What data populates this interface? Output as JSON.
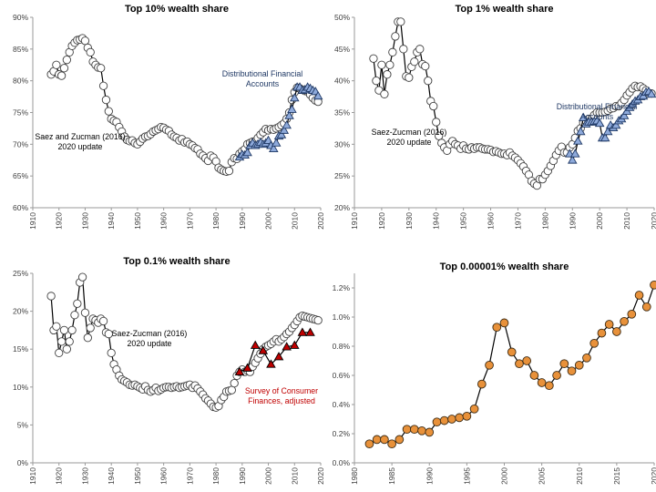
{
  "chart_data": [
    {
      "type": "line",
      "title": "Top 10% wealth share",
      "xlabel": "",
      "ylabel": "",
      "xlim": [
        1910,
        2020
      ],
      "ylim": [
        60,
        90
      ],
      "x_ticks": [
        1910,
        1920,
        1930,
        1940,
        1950,
        1960,
        1970,
        1980,
        1990,
        2000,
        2010,
        2020
      ],
      "y_ticks": [
        60,
        65,
        70,
        75,
        80,
        85,
        90
      ],
      "y_tick_labels": [
        "60%",
        "65%",
        "70%",
        "75%",
        "80%",
        "85%",
        "90%"
      ],
      "grid": false,
      "annotations": [
        {
          "text": "Saez and Zucman (2016)\n2020 update",
          "color": "#000000"
        },
        {
          "text": "Distributional Financial\nAccounts",
          "color": "#1f3864"
        }
      ],
      "series": [
        {
          "name": "Saez and Zucman (2016)\n2020 update",
          "marker": "circle",
          "color": "#000000",
          "x": [
            1917,
            1918,
            1919,
            1920,
            1921,
            1922,
            1923,
            1924,
            1925,
            1926,
            1927,
            1928,
            1929,
            1930,
            1931,
            1932,
            1933,
            1934,
            1935,
            1936,
            1937,
            1938,
            1939,
            1940,
            1941,
            1942,
            1943,
            1944,
            1945,
            1946,
            1947,
            1948,
            1949,
            1950,
            1951,
            1952,
            1953,
            1954,
            1955,
            1956,
            1957,
            1958,
            1959,
            1960,
            1961,
            1962,
            1963,
            1964,
            1965,
            1966,
            1967,
            1968,
            1969,
            1970,
            1971,
            1972,
            1973,
            1974,
            1975,
            1976,
            1977,
            1978,
            1979,
            1980,
            1981,
            1982,
            1983,
            1984,
            1985,
            1986,
            1987,
            1988,
            1989,
            1990,
            1991,
            1992,
            1993,
            1994,
            1995,
            1996,
            1997,
            1998,
            1999,
            2000,
            2001,
            2002,
            2003,
            2004,
            2005,
            2006,
            2007,
            2008,
            2009,
            2010,
            2011,
            2012,
            2013,
            2014,
            2015,
            2016,
            2017,
            2018,
            2019
          ],
          "y": [
            81,
            81.5,
            82.5,
            81,
            80.8,
            82,
            83.3,
            84.5,
            85.5,
            86,
            86.4,
            86.5,
            86.7,
            86.3,
            85.2,
            84.5,
            83,
            82.5,
            82.1,
            82,
            79.2,
            77,
            75.2,
            74,
            73.7,
            73.5,
            72.7,
            72,
            71.2,
            70.7,
            70.5,
            70.6,
            70.2,
            70,
            70.4,
            70.9,
            71.2,
            71.3,
            71.6,
            72,
            72.2,
            72.4,
            72.7,
            72.6,
            72.3,
            72.1,
            71.5,
            71.2,
            71,
            70.6,
            70.8,
            70.3,
            70.4,
            70,
            69.8,
            69.4,
            69.2,
            68.5,
            68.2,
            67.8,
            67.4,
            68.2,
            67.9,
            67.3,
            66.3,
            66,
            65.8,
            65.7,
            65.8,
            67.2,
            67.8,
            67.7,
            68.5,
            68.9,
            69.2,
            70,
            70.2,
            70.4,
            70.5,
            71,
            71.5,
            71.9,
            72.4,
            72.2,
            72.4,
            72.3,
            72.5,
            72.7,
            73,
            73.3,
            74,
            75,
            77,
            78.2,
            78.9,
            78.8,
            78.6,
            78.4,
            78.3,
            77.8,
            77.3,
            76.9,
            76.7
          ]
        },
        {
          "name": "Distributional Financial\nAccounts",
          "marker": "triangle",
          "color": "#1f3864",
          "x": [
            1989,
            1990,
            1991,
            1992,
            1993,
            1994,
            1995,
            1996,
            1997,
            1998,
            1999,
            2000,
            2001,
            2002,
            2003,
            2004,
            2005,
            2006,
            2007,
            2008,
            2009,
            2010,
            2011,
            2012,
            2013,
            2014,
            2015,
            2016,
            2017,
            2018,
            2019
          ],
          "y": [
            68,
            68.4,
            68.3,
            68.7,
            69.8,
            70.2,
            69.8,
            70,
            70.3,
            70,
            70.2,
            70.6,
            69.8,
            69.3,
            70.2,
            71.3,
            71.5,
            72.2,
            73,
            74.5,
            75.5,
            77.3,
            79,
            79,
            78.5,
            78.6,
            79,
            78.8,
            78.5,
            78.3,
            77.6
          ]
        }
      ]
    },
    {
      "type": "line",
      "title": "Top 1% wealth share",
      "xlabel": "",
      "ylabel": "",
      "xlim": [
        1910,
        2020
      ],
      "ylim": [
        20,
        50
      ],
      "x_ticks": [
        1910,
        1920,
        1930,
        1940,
        1950,
        1960,
        1970,
        1980,
        1990,
        2000,
        2010,
        2020
      ],
      "y_ticks": [
        20,
        25,
        30,
        35,
        40,
        45,
        50
      ],
      "y_tick_labels": [
        "20%",
        "25%",
        "30%",
        "35%",
        "40%",
        "45%",
        "50%"
      ],
      "grid": false,
      "annotations": [
        {
          "text": "Saez-Zucman (2016)\n2020 update",
          "color": "#000000"
        },
        {
          "text": "Distributional Financial\nAccounts",
          "color": "#1f3864"
        }
      ],
      "series": [
        {
          "name": "Saez-Zucman (2016)\n2020 update",
          "marker": "circle",
          "color": "#000000",
          "x": [
            1917,
            1918,
            1919,
            1920,
            1921,
            1922,
            1923,
            1924,
            1925,
            1926,
            1927,
            1928,
            1929,
            1930,
            1931,
            1932,
            1933,
            1934,
            1935,
            1936,
            1937,
            1938,
            1939,
            1940,
            1941,
            1942,
            1943,
            1944,
            1945,
            1946,
            1947,
            1948,
            1949,
            1950,
            1951,
            1952,
            1953,
            1954,
            1955,
            1956,
            1957,
            1958,
            1959,
            1960,
            1961,
            1962,
            1963,
            1964,
            1965,
            1966,
            1967,
            1968,
            1969,
            1970,
            1971,
            1972,
            1973,
            1974,
            1975,
            1976,
            1977,
            1978,
            1979,
            1980,
            1981,
            1982,
            1983,
            1984,
            1985,
            1986,
            1987,
            1988,
            1989,
            1990,
            1991,
            1992,
            1993,
            1994,
            1995,
            1996,
            1997,
            1998,
            1999,
            2000,
            2001,
            2002,
            2003,
            2004,
            2005,
            2006,
            2007,
            2008,
            2009,
            2010,
            2011,
            2012,
            2013,
            2014,
            2015,
            2016,
            2017,
            2018,
            2019
          ],
          "y": [
            43.5,
            40,
            38.5,
            42.5,
            37.9,
            41,
            42.5,
            44.5,
            47,
            49.3,
            49.3,
            45,
            40.7,
            40.5,
            42.2,
            43,
            44.5,
            45,
            42.6,
            42.3,
            40,
            36.8,
            36,
            33.5,
            31.3,
            30.2,
            29.5,
            29,
            30,
            30.5,
            30,
            29.8,
            29.3,
            29.8,
            29.3,
            29.2,
            29.5,
            29.3,
            29.5,
            29.5,
            29.3,
            29.2,
            29.2,
            29.1,
            28.8,
            28.9,
            28.7,
            28.5,
            28.5,
            28.3,
            28.7,
            28.2,
            27.9,
            27.5,
            27,
            26.5,
            25.8,
            25.2,
            24.2,
            23.8,
            23.5,
            24.5,
            24.5,
            25.2,
            25.8,
            26.6,
            27.4,
            28.3,
            29,
            29.6,
            28.7,
            28.7,
            29.5,
            30,
            31,
            32.1,
            32.5,
            33.4,
            33.7,
            34,
            34,
            34.6,
            35,
            35,
            35,
            35.1,
            35.3,
            35.6,
            35.7,
            36,
            36,
            36.5,
            37,
            37.7,
            38.2,
            38.8,
            39.2,
            39,
            39.1,
            38.8,
            38.5,
            38,
            38
          ]
        },
        {
          "name": "Distributional Financial\nAccounts",
          "marker": "triangle",
          "color": "#1f3864",
          "x": [
            1989,
            1990,
            1991,
            1992,
            1993,
            1994,
            1995,
            1996,
            1997,
            1998,
            1999,
            2000,
            2001,
            2002,
            2003,
            2004,
            2005,
            2006,
            2007,
            2008,
            2009,
            2010,
            2011,
            2012,
            2013,
            2014,
            2015,
            2016,
            2017,
            2018,
            2019
          ],
          "y": [
            28.5,
            27.5,
            28.5,
            30.5,
            32,
            34.2,
            33.2,
            33.5,
            33.5,
            33.6,
            33.7,
            33.3,
            31,
            31,
            32,
            33,
            32.6,
            33,
            33.7,
            34,
            34.5,
            35.2,
            35.8,
            36.3,
            36.8,
            37,
            37.5,
            37.6,
            38.2,
            38.3,
            37.9
          ]
        }
      ]
    },
    {
      "type": "line",
      "title": "Top 0.1% wealth share",
      "xlabel": "",
      "ylabel": "",
      "xlim": [
        1910,
        2020
      ],
      "ylim": [
        0,
        25
      ],
      "x_ticks": [
        1910,
        1920,
        1930,
        1940,
        1950,
        1960,
        1970,
        1980,
        1990,
        2000,
        2010,
        2020
      ],
      "y_ticks": [
        0,
        5,
        10,
        15,
        20,
        25
      ],
      "y_tick_labels": [
        "0%",
        "5%",
        "10%",
        "15%",
        "20%",
        "25%"
      ],
      "grid": false,
      "annotations": [
        {
          "text": "Saez-Zucman (2016)\n2020 update",
          "color": "#000000"
        },
        {
          "text": "Survey of Consumer\nFinances, adjusted",
          "color": "#c00000"
        }
      ],
      "series": [
        {
          "name": "Saez-Zucman (2016)\n2020 update",
          "marker": "circle",
          "color": "#000000",
          "x": [
            1917,
            1918,
            1919,
            1920,
            1921,
            1922,
            1923,
            1924,
            1925,
            1926,
            1927,
            1928,
            1929,
            1930,
            1931,
            1932,
            1933,
            1934,
            1935,
            1936,
            1937,
            1938,
            1939,
            1940,
            1941,
            1942,
            1943,
            1944,
            1945,
            1946,
            1947,
            1948,
            1949,
            1950,
            1951,
            1952,
            1953,
            1954,
            1955,
            1956,
            1957,
            1958,
            1959,
            1960,
            1961,
            1962,
            1963,
            1964,
            1965,
            1966,
            1967,
            1968,
            1969,
            1970,
            1971,
            1972,
            1973,
            1974,
            1975,
            1976,
            1977,
            1978,
            1979,
            1980,
            1981,
            1982,
            1983,
            1984,
            1985,
            1986,
            1987,
            1988,
            1989,
            1990,
            1991,
            1992,
            1993,
            1994,
            1995,
            1996,
            1997,
            1998,
            1999,
            2000,
            2001,
            2002,
            2003,
            2004,
            2005,
            2006,
            2007,
            2008,
            2009,
            2010,
            2011,
            2012,
            2013,
            2014,
            2015,
            2016,
            2017,
            2018,
            2019
          ],
          "y": [
            22,
            17.5,
            18,
            14.5,
            16,
            17.5,
            15,
            16,
            17.5,
            19.5,
            21,
            23.8,
            24.5,
            19.8,
            16.5,
            17.8,
            19,
            18.8,
            18.5,
            19,
            18.7,
            17.2,
            17,
            14.5,
            13,
            12.3,
            11.5,
            11,
            10.8,
            10.6,
            10.3,
            10.2,
            10.3,
            10.1,
            9.9,
            9.7,
            10.1,
            9.6,
            9.4,
            9.6,
            9.9,
            9.5,
            9.7,
            9.9,
            10,
            10,
            9.9,
            10,
            10.1,
            9.9,
            10,
            10.1,
            10.2,
            10.3,
            9.9,
            10.2,
            9.8,
            9.4,
            9,
            8.5,
            8.2,
            7.8,
            7.4,
            7.3,
            7.5,
            8.3,
            8.7,
            9.4,
            9.5,
            9.6,
            10.5,
            11.5,
            12,
            12.3,
            12,
            12.2,
            12,
            12.7,
            13.2,
            13.8,
            14.4,
            15,
            15.3,
            15.5,
            15.7,
            16,
            16.3,
            16,
            16.3,
            16.6,
            17,
            17.3,
            17.8,
            18.2,
            18.7,
            19.2,
            19.4,
            19.3,
            19.2,
            19.1,
            19,
            18.9,
            18.8
          ]
        },
        {
          "name": "Survey of Consumer\nFinances, adjusted",
          "marker": "triangle",
          "color": "#c00000",
          "x": [
            1989,
            1992,
            1995,
            1998,
            2001,
            2004,
            2007,
            2010,
            2013,
            2016
          ],
          "y": [
            12,
            12.5,
            15.5,
            14.8,
            13,
            14,
            15.3,
            15.5,
            17.2,
            17.2
          ]
        }
      ]
    },
    {
      "type": "line",
      "title": "Top 0.00001% wealth share",
      "xlabel": "",
      "ylabel": "",
      "xlim": [
        1980,
        2020
      ],
      "ylim": [
        0,
        1.3
      ],
      "x_ticks": [
        1980,
        1985,
        1990,
        1995,
        2000,
        2005,
        2010,
        2015,
        2020
      ],
      "y_ticks": [
        0,
        0.2,
        0.4,
        0.6,
        0.8,
        1.0,
        1.2
      ],
      "y_tick_labels": [
        "0.0%",
        "0.2%",
        "0.4%",
        "0.6%",
        "0.8%",
        "1.0%",
        "1.2%"
      ],
      "grid": false,
      "annotations": [],
      "series": [
        {
          "name": "",
          "marker": "circle",
          "color": "#e8913a",
          "x": [
            1982,
            1983,
            1984,
            1985,
            1986,
            1987,
            1988,
            1989,
            1990,
            1991,
            1992,
            1993,
            1994,
            1995,
            1996,
            1997,
            1998,
            1999,
            2000,
            2001,
            2002,
            2003,
            2004,
            2005,
            2006,
            2007,
            2008,
            2009,
            2010,
            2011,
            2012,
            2013,
            2014,
            2015,
            2016,
            2017,
            2018,
            2019,
            2020
          ],
          "y": [
            0.13,
            0.16,
            0.16,
            0.13,
            0.16,
            0.23,
            0.23,
            0.22,
            0.21,
            0.28,
            0.29,
            0.3,
            0.31,
            0.32,
            0.37,
            0.54,
            0.67,
            0.93,
            0.96,
            0.76,
            0.68,
            0.7,
            0.6,
            0.55,
            0.53,
            0.6,
            0.68,
            0.63,
            0.67,
            0.72,
            0.82,
            0.89,
            0.95,
            0.9,
            0.97,
            1.02,
            1.15,
            1.07,
            1.22
          ]
        }
      ]
    }
  ]
}
